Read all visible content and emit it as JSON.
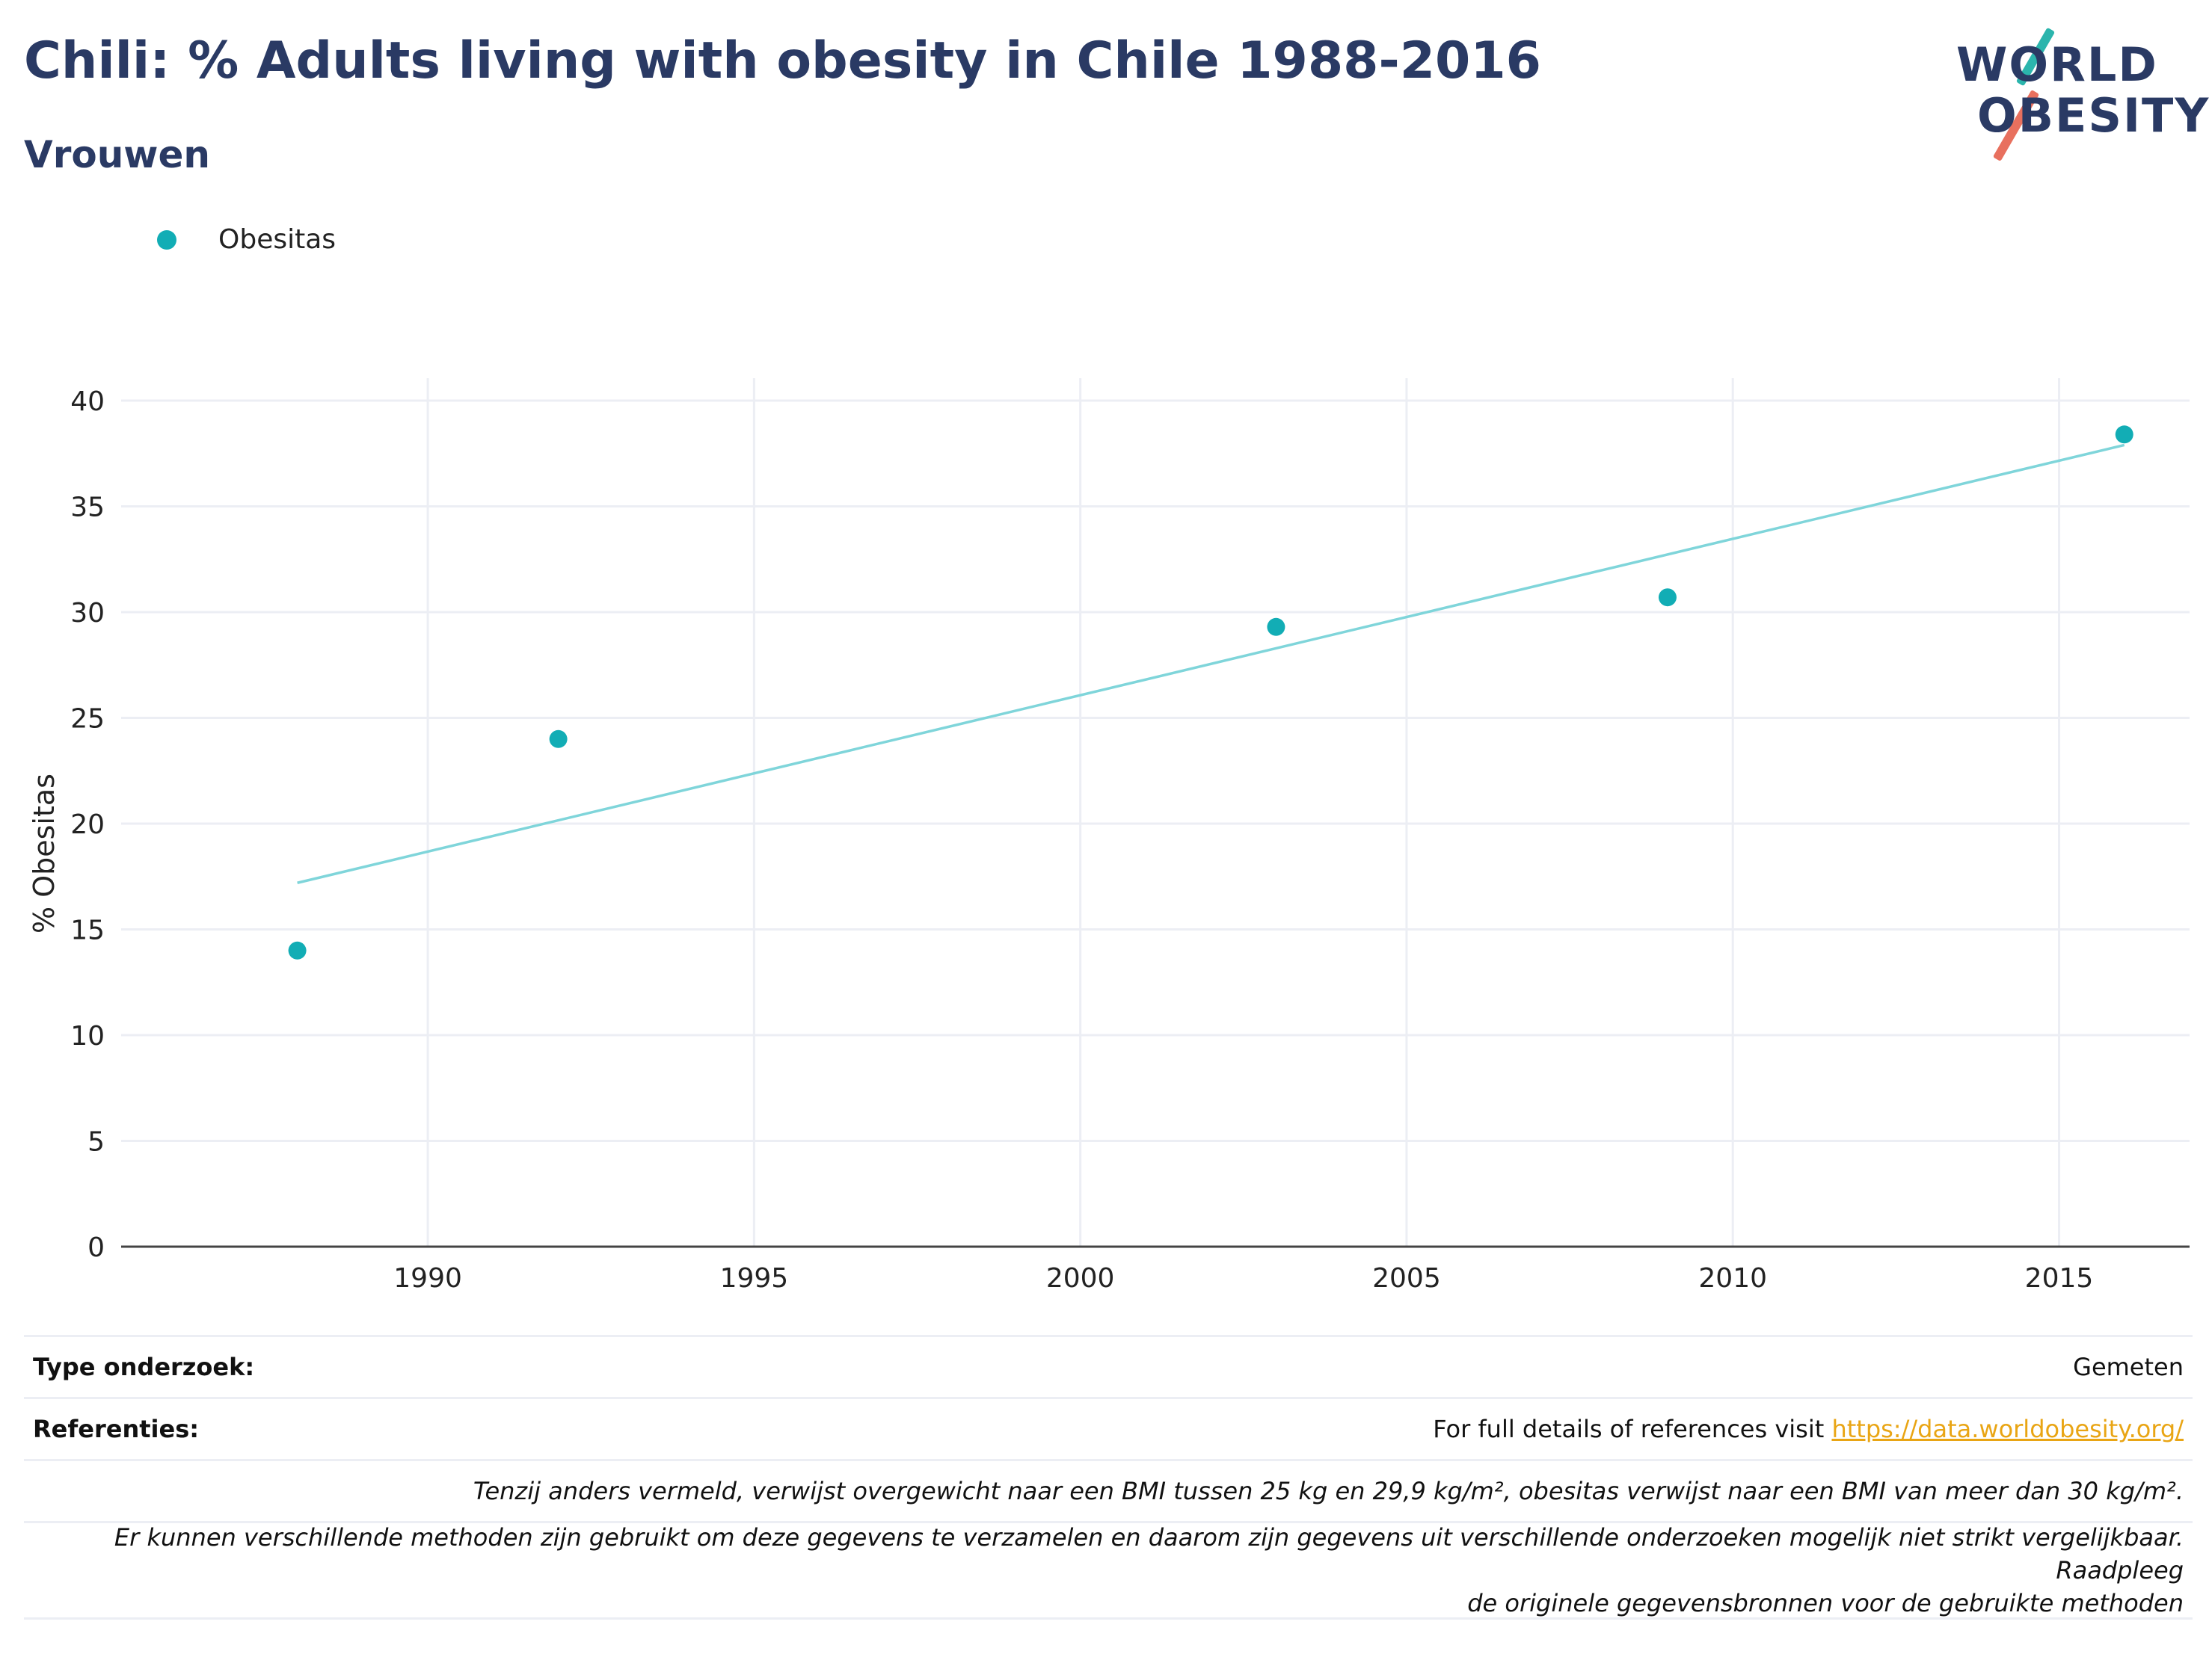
{
  "header": {
    "title": "Chili: % Adults living with obesity in Chile 1988-2016",
    "subtitle": "Vrouwen"
  },
  "logo": {
    "line1": "WORLD",
    "line2": "OBESITY"
  },
  "colors": {
    "series": "#12adb5",
    "trend": "#7fd5da",
    "title": "#2a3a64",
    "grid": "#eceef4",
    "link": "#e9a514"
  },
  "chart_data": {
    "type": "scatter",
    "x": [
      1988,
      1992,
      2003,
      2009,
      2016
    ],
    "series": [
      {
        "name": "Obesitas",
        "values": [
          14.0,
          24.0,
          29.3,
          30.7,
          38.4
        ]
      }
    ],
    "trendline": {
      "x": [
        1988,
        2016
      ],
      "y": [
        17.2,
        37.9
      ]
    },
    "xlabel": "",
    "ylabel": "% Obesitas",
    "xlim": [
      1985.3,
      2017.0
    ],
    "ylim": [
      0,
      40
    ],
    "xticks": [
      1990,
      1995,
      2000,
      2005,
      2010,
      2015
    ],
    "yticks": [
      0,
      5,
      10,
      15,
      20,
      25,
      30,
      35,
      40
    ],
    "grid": true,
    "legend": "top-left"
  },
  "footer": {
    "type_label": "Type onderzoek:",
    "type_value": "Gemeten",
    "ref_label": "Referenties:",
    "ref_text": "For full details of references visit ",
    "ref_link": "https://data.worldobesity.org/",
    "note1": "Tenzij anders vermeld, verwijst overgewicht naar een BMI tussen 25 kg en 29,9 kg/m², obesitas verwijst naar een BMI van meer dan 30 kg/m².",
    "note2_line1": "Er kunnen verschillende methoden zijn gebruikt om deze gegevens te verzamelen en daarom zijn gegevens uit verschillende onderzoeken mogelijk niet strikt vergelijkbaar. Raadpleeg",
    "note2_line2": "de originele gegevensbronnen voor de gebruikte methoden"
  }
}
